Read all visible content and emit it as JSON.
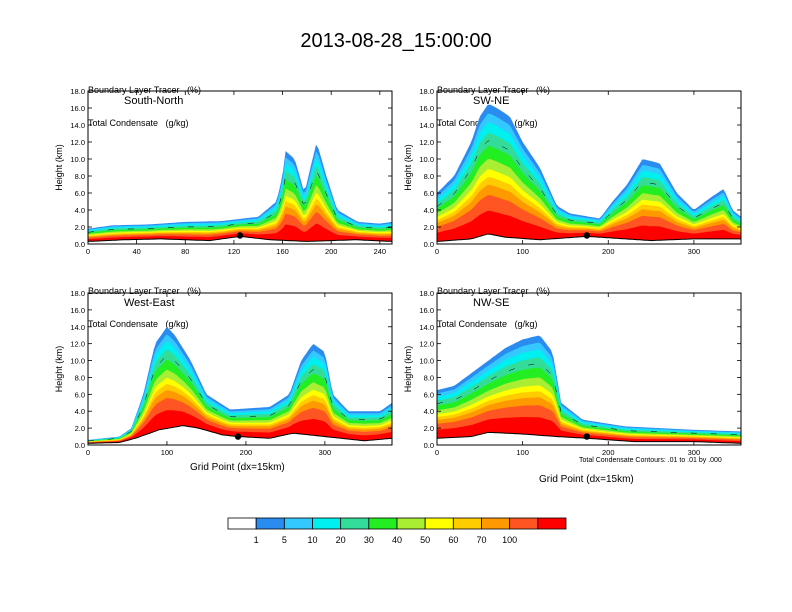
{
  "title": "2013-08-28_15:00:00",
  "panel_title_lines": [
    "Boundary Layer Tracer   (%)",
    "Total Condensate   (g/kg)"
  ],
  "y_axis_label": "Height (km)",
  "x_axis_label": "Grid Point (dx=15km)",
  "contour_note": "Total Condensate Contours: .01 to .01 by .000",
  "colors": [
    "#ffffff",
    "#2b8cf0",
    "#33c8ff",
    "#00f0f0",
    "#33dd99",
    "#22ee22",
    "#aaee33",
    "#ffff00",
    "#ffcc00",
    "#ff9900",
    "#ff5522",
    "#ff0000"
  ],
  "colorbar_labels": [
    "1",
    "5",
    "10",
    "20",
    "30",
    "40",
    "50",
    "60",
    "70",
    "100"
  ],
  "chart_data": [
    {
      "type": "heatmap",
      "label": "South-North",
      "xlim": [
        0,
        250
      ],
      "ylim": [
        0,
        18
      ],
      "xticks": [
        0,
        40,
        80,
        120,
        160,
        200,
        240
      ],
      "yticks": [
        "0.0",
        "2.0",
        "4.0",
        "6.0",
        "8.0",
        "10.0",
        "12.0",
        "14.0",
        "16.0",
        "18.0"
      ],
      "surface_height_km": [
        [
          0,
          0.3
        ],
        [
          30,
          0.5
        ],
        [
          60,
          0.6
        ],
        [
          100,
          0.4
        ],
        [
          125,
          0.9
        ],
        [
          150,
          0.5
        ],
        [
          180,
          0.3
        ],
        [
          220,
          0.5
        ],
        [
          250,
          0.3
        ]
      ],
      "tracer_top_km": [
        [
          0,
          1.8
        ],
        [
          20,
          2.2
        ],
        [
          50,
          2.3
        ],
        [
          80,
          2.6
        ],
        [
          110,
          2.7
        ],
        [
          140,
          3.2
        ],
        [
          155,
          5
        ],
        [
          160,
          8
        ],
        [
          162,
          11
        ],
        [
          170,
          10
        ],
        [
          178,
          6
        ],
        [
          188,
          12
        ],
        [
          196,
          8
        ],
        [
          205,
          4
        ],
        [
          222,
          2.6
        ],
        [
          240,
          2.4
        ],
        [
          250,
          2.6
        ]
      ],
      "marker": [
        125,
        1.0
      ]
    },
    {
      "type": "heatmap",
      "label": "SW-NE",
      "xlim": [
        0,
        355
      ],
      "ylim": [
        0,
        18
      ],
      "xticks": [
        0,
        100,
        200,
        300
      ],
      "yticks": [
        "0.0",
        "2.0",
        "4.0",
        "6.0",
        "8.0",
        "10.0",
        "12.0",
        "14.0",
        "16.0",
        "18.0"
      ],
      "surface_height_km": [
        [
          0,
          0.3
        ],
        [
          40,
          0.6
        ],
        [
          60,
          1.2
        ],
        [
          80,
          0.8
        ],
        [
          120,
          0.5
        ],
        [
          175,
          0.9
        ],
        [
          250,
          0.4
        ],
        [
          300,
          0.6
        ],
        [
          355,
          0.6
        ]
      ],
      "tracer_top_km": [
        [
          0,
          6
        ],
        [
          20,
          8
        ],
        [
          40,
          12
        ],
        [
          50,
          15
        ],
        [
          60,
          16.5
        ],
        [
          70,
          16
        ],
        [
          85,
          15
        ],
        [
          100,
          12
        ],
        [
          120,
          9
        ],
        [
          140,
          4.5
        ],
        [
          155,
          3.6
        ],
        [
          190,
          3.0
        ],
        [
          205,
          5
        ],
        [
          222,
          7
        ],
        [
          240,
          10
        ],
        [
          260,
          9.5
        ],
        [
          280,
          6
        ],
        [
          300,
          4
        ],
        [
          320,
          5.5
        ],
        [
          335,
          6.5
        ],
        [
          345,
          4
        ],
        [
          355,
          3.2
        ]
      ],
      "marker": [
        175,
        1.0
      ]
    },
    {
      "type": "heatmap",
      "label": "West-East",
      "xlim": [
        0,
        385
      ],
      "ylim": [
        0,
        18
      ],
      "xticks": [
        0,
        100,
        200,
        300
      ],
      "yticks": [
        "0.0",
        "2.0",
        "4.0",
        "6.0",
        "8.0",
        "10.0",
        "12.0",
        "14.0",
        "16.0",
        "18.0"
      ],
      "surface_height_km": [
        [
          0,
          0.2
        ],
        [
          40,
          0.3
        ],
        [
          60,
          0.8
        ],
        [
          90,
          1.8
        ],
        [
          120,
          2.3
        ],
        [
          140,
          2.0
        ],
        [
          170,
          1.2
        ],
        [
          190,
          1.0
        ],
        [
          230,
          0.8
        ],
        [
          260,
          1.4
        ],
        [
          300,
          1.0
        ],
        [
          350,
          0.5
        ],
        [
          385,
          0.8
        ]
      ],
      "tracer_top_km": [
        [
          0,
          0.6
        ],
        [
          40,
          1.0
        ],
        [
          55,
          2.0
        ],
        [
          70,
          6
        ],
        [
          85,
          12
        ],
        [
          100,
          14
        ],
        [
          110,
          13
        ],
        [
          130,
          10
        ],
        [
          150,
          6
        ],
        [
          180,
          4.2
        ],
        [
          230,
          4.5
        ],
        [
          255,
          6
        ],
        [
          270,
          10
        ],
        [
          285,
          12
        ],
        [
          300,
          11
        ],
        [
          310,
          6
        ],
        [
          330,
          4
        ],
        [
          370,
          4
        ],
        [
          385,
          5
        ]
      ],
      "marker": [
        190,
        1.0
      ]
    },
    {
      "type": "heatmap",
      "label": "NW-SE",
      "xlim": [
        0,
        355
      ],
      "ylim": [
        0,
        18
      ],
      "xticks": [
        0,
        100,
        200,
        300
      ],
      "yticks": [
        "0.0",
        "2.0",
        "4.0",
        "6.0",
        "8.0",
        "10.0",
        "12.0",
        "14.0",
        "16.0",
        "18.0"
      ],
      "surface_height_km": [
        [
          0,
          0.8
        ],
        [
          40,
          1.0
        ],
        [
          60,
          1.5
        ],
        [
          100,
          1.3
        ],
        [
          140,
          1.0
        ],
        [
          175,
          0.8
        ],
        [
          230,
          0.4
        ],
        [
          300,
          0.4
        ],
        [
          355,
          0.2
        ]
      ],
      "tracer_top_km": [
        [
          0,
          6.5
        ],
        [
          20,
          7
        ],
        [
          40,
          8.5
        ],
        [
          60,
          10
        ],
        [
          80,
          11.5
        ],
        [
          100,
          12.5
        ],
        [
          120,
          13
        ],
        [
          135,
          11
        ],
        [
          145,
          5
        ],
        [
          170,
          3.0
        ],
        [
          220,
          2.2
        ],
        [
          300,
          1.8
        ],
        [
          355,
          1.6
        ]
      ],
      "marker": [
        175,
        1.0
      ]
    }
  ]
}
